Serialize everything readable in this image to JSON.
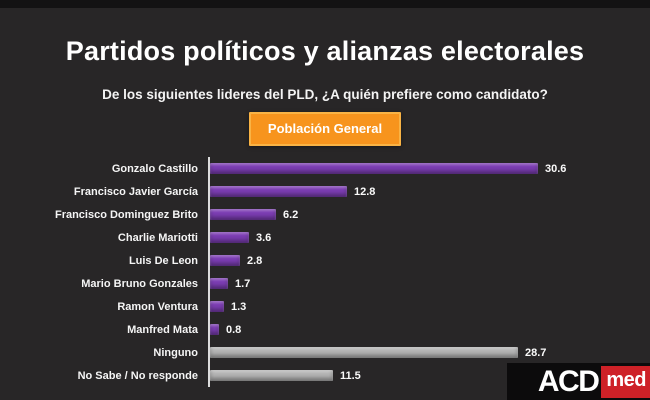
{
  "colors": {
    "background": "#282627",
    "top_strip": "#131213",
    "axis_line": "#dcdcdc",
    "badge_bg": "#f7941d",
    "badge_border": "#f9b345",
    "badge_text": "#ffffff",
    "bar_purple": "#7d3eb4",
    "bar_gray": "#b5b5b5",
    "logo_bg": "#0c0b0c",
    "logo_accent": "#ce2127"
  },
  "header": {
    "title": "Partidos políticos y alianzas electorales",
    "subtitle": "De los siguientes lideres del PLD, ¿A quién prefiere como candidato?",
    "badge_label": "Población General"
  },
  "chart_data": {
    "type": "bar",
    "orientation": "horizontal",
    "title": "De los siguientes lideres del PLD, ¿A quién prefiere como candidato?",
    "legend": "Población General",
    "categories": [
      "Gonzalo Castillo",
      "Francisco Javier García",
      "Francisco Dominguez Brito",
      "Charlie Mariotti",
      "Luis De Leon",
      "Mario Bruno Gonzales",
      "Ramon Ventura",
      "Manfred Mata",
      "Ninguno",
      "No Sabe / No responde"
    ],
    "values": [
      30.6,
      12.8,
      6.2,
      3.6,
      2.8,
      1.7,
      1.3,
      0.8,
      28.7,
      11.5
    ],
    "bar_color_keys": [
      "bar_purple",
      "bar_purple",
      "bar_purple",
      "bar_purple",
      "bar_purple",
      "bar_purple",
      "bar_purple",
      "bar_purple",
      "bar_gray",
      "bar_gray"
    ],
    "data_labels": true,
    "grid": false,
    "xlim": [
      0,
      32
    ]
  },
  "logo": {
    "text_primary": "ACD",
    "text_secondary": "med"
  }
}
